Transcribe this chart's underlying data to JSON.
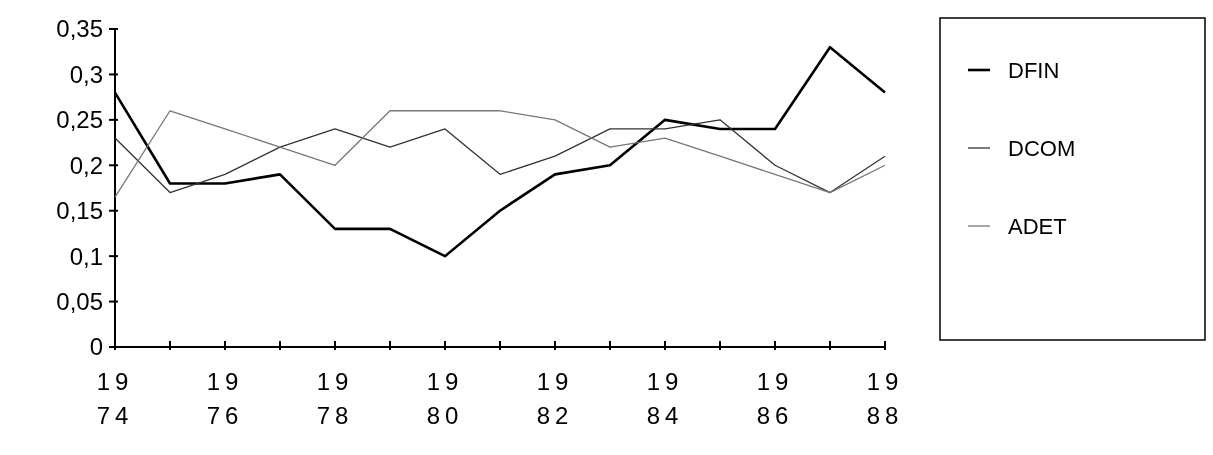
{
  "chart_data": {
    "type": "line",
    "x": [
      1974,
      1975,
      1976,
      1977,
      1978,
      1979,
      1980,
      1981,
      1982,
      1983,
      1984,
      1985,
      1986,
      1987,
      1988
    ],
    "series": [
      {
        "name": "DFIN",
        "color": "#000000",
        "values": [
          0.28,
          0.18,
          0.18,
          0.19,
          0.13,
          0.13,
          0.1,
          0.15,
          0.19,
          0.2,
          0.25,
          0.24,
          0.24,
          0.33,
          0.28
        ]
      },
      {
        "name": "DCOM",
        "color": "#333333",
        "values": [
          0.23,
          0.17,
          0.19,
          0.22,
          0.24,
          0.22,
          0.24,
          0.19,
          0.21,
          0.24,
          0.24,
          0.25,
          0.2,
          0.17,
          0.21
        ]
      },
      {
        "name": "ADET",
        "color": "#777777",
        "values": [
          0.165,
          0.26,
          0.24,
          0.22,
          0.2,
          0.26,
          0.26,
          0.26,
          0.25,
          0.22,
          0.23,
          0.21,
          0.19,
          0.17,
          0.2
        ]
      }
    ],
    "xlim": [
      1974,
      1988
    ],
    "xticks": [
      {
        "value": 1974,
        "label": "1974"
      },
      {
        "value": 1975,
        "label": null
      },
      {
        "value": 1976,
        "label": "1976"
      },
      {
        "value": 1977,
        "label": null
      },
      {
        "value": 1978,
        "label": "1978"
      },
      {
        "value": 1979,
        "label": null
      },
      {
        "value": 1980,
        "label": "1980"
      },
      {
        "value": 1981,
        "label": null
      },
      {
        "value": 1982,
        "label": "1982"
      },
      {
        "value": 1983,
        "label": null
      },
      {
        "value": 1984,
        "label": "1984"
      },
      {
        "value": 1985,
        "label": null
      },
      {
        "value": 1986,
        "label": "1986"
      },
      {
        "value": 1987,
        "label": null
      },
      {
        "value": 1988,
        "label": "1988"
      }
    ],
    "ylim": [
      0,
      0.35
    ],
    "yticks": [
      0,
      {
        "value": 0.05,
        "label": "0,05"
      },
      {
        "value": 0.1,
        "label": "0,1"
      },
      {
        "value": 0.15,
        "label": "0,15"
      },
      {
        "value": 0.2,
        "label": "0,2"
      },
      {
        "value": 0.25,
        "label": "0,25"
      },
      {
        "value": 0.3,
        "label": "0,3"
      },
      {
        "value": 0.35,
        "label": "0,35"
      }
    ],
    "grid": false,
    "legend": "right",
    "marker": "none",
    "line_style": "solid"
  }
}
